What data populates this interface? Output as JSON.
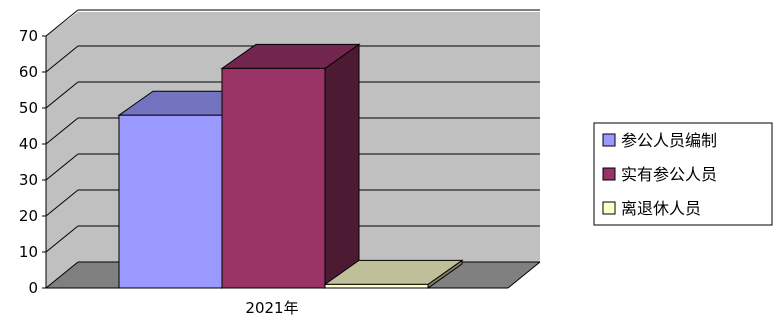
{
  "chart_data": {
    "type": "bar",
    "categories": [
      "2021年"
    ],
    "series": [
      {
        "name": "参公人员编制",
        "values": [
          48
        ],
        "color": "#9999ff"
      },
      {
        "name": "实有参公人员",
        "values": [
          61
        ],
        "color": "#993366"
      },
      {
        "name": "离退休人员",
        "values": [
          1
        ],
        "color": "#ffffcc"
      }
    ],
    "yticks": [
      "0",
      "10",
      "20",
      "30",
      "40",
      "50",
      "60",
      "70"
    ],
    "ylim": [
      0,
      70
    ],
    "grid": true,
    "legend_position": "right",
    "three_d": true
  }
}
